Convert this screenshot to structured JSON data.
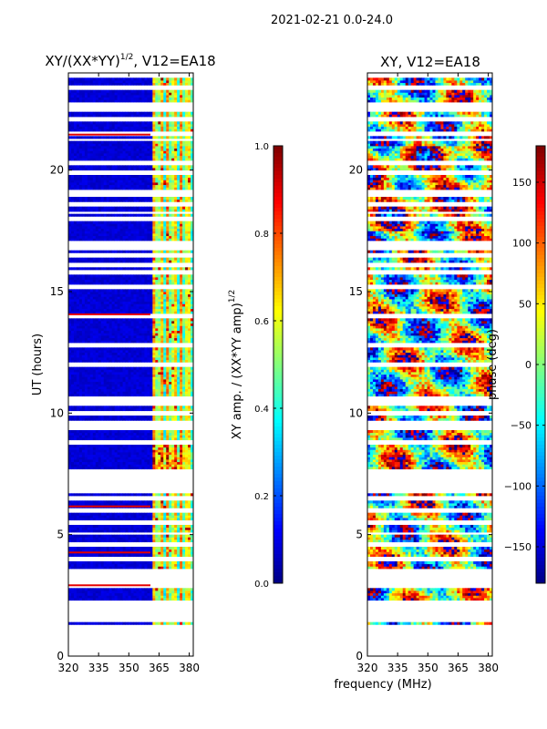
{
  "figure_title": "2021-02-21 0.0-24.0",
  "chart_data": [
    {
      "type": "heatmap",
      "title_main": "XY/(XX*YY)",
      "title_sup": "1/2",
      "title_tail": ", V12=EA18",
      "xlabel": "",
      "ylabel": "UT (hours)",
      "xlim": [
        320,
        382
      ],
      "ylim": [
        0,
        24
      ],
      "xticks": [
        320,
        335,
        350,
        365,
        380
      ],
      "yticks": [
        0,
        5,
        10,
        15,
        20
      ],
      "colorbar": {
        "label_main": "XY amp. / (XX*YY amp)",
        "label_sup": "1/2",
        "range": [
          0.0,
          1.0
        ],
        "ticks": [
          "0.0",
          "0.2",
          "0.4",
          "0.6",
          "0.8",
          "1.0"
        ]
      }
    },
    {
      "type": "heatmap",
      "title_main": "XY, V12=EA18",
      "xlabel": "frequency (MHz)",
      "ylabel": "",
      "xlim": [
        320,
        382
      ],
      "ylim": [
        0,
        24
      ],
      "xticks": [
        320,
        335,
        350,
        365,
        380
      ],
      "yticks": [
        0,
        5,
        10,
        15,
        20
      ],
      "colorbar": {
        "label_main": "phase (deg)",
        "range": [
          -180,
          180
        ],
        "ticks": [
          "150",
          "100",
          "50",
          "0",
          "−50",
          "−100",
          "−150"
        ],
        "tick_values": [
          150,
          100,
          50,
          0,
          -50,
          -100,
          -150
        ]
      }
    }
  ],
  "blank_rows_hours": [
    1.45,
    1.75,
    2.9,
    3.1,
    3.3,
    3.5,
    4.0,
    4.6,
    5.05,
    5.5,
    6.0,
    6.5,
    6.8,
    7.0,
    7.2,
    7.4,
    7.6,
    8.8,
    9.4,
    9.6,
    10.0,
    10.4,
    12.0,
    12.8,
    14.0,
    15.2,
    15.8,
    16.1,
    16.5,
    18.0,
    18.25,
    18.6,
    19.1,
    19.9,
    20.3,
    21.25,
    21.5,
    22.1,
    22.7,
    23.4
  ],
  "blank_bands_hours": [
    [
      1.55,
      2.3
    ],
    [
      10.55,
      10.7
    ],
    [
      16.75,
      17.1
    ],
    [
      18.95,
      19.05
    ],
    [
      22.45,
      22.55
    ]
  ]
}
